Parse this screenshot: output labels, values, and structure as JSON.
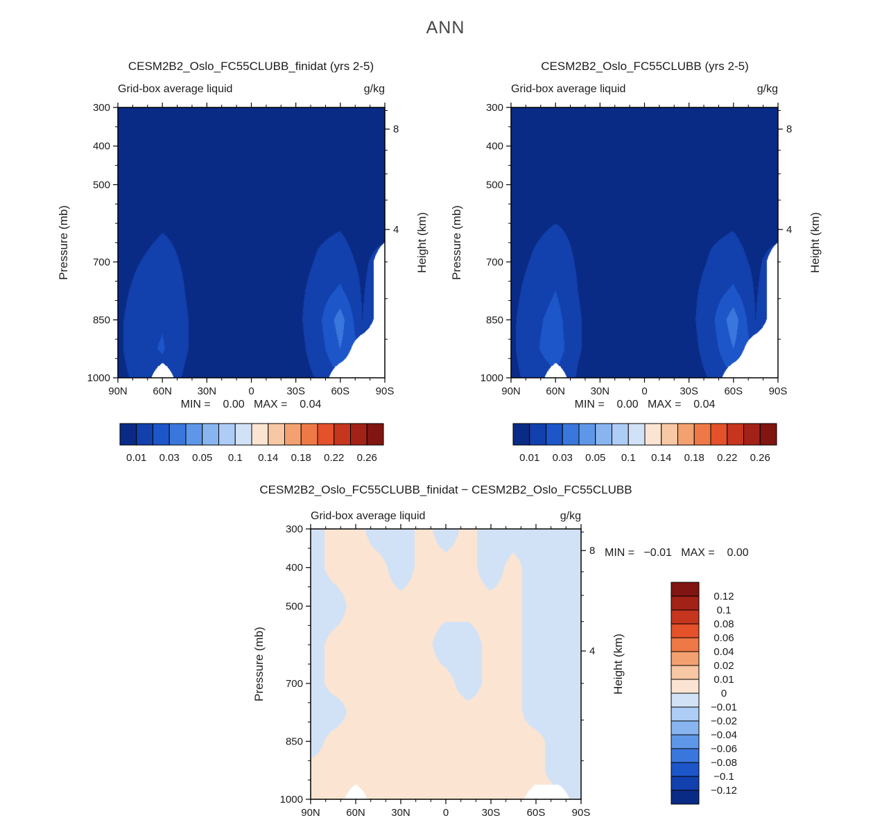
{
  "figure_title": "ANN",
  "palette_blue_red": [
    "#0a2b85",
    "#1240ad",
    "#1c56c8",
    "#3a77dd",
    "#5f97e8",
    "#88b5f0",
    "#aecdf6",
    "#d2e2f6",
    "#fbe5d2",
    "#f8c7a4",
    "#f4a171",
    "#ee7946",
    "#e4512a",
    "#c6351e",
    "#a32218",
    "#801511"
  ],
  "axes_shared": {
    "ylabel": "Pressure (mb)",
    "y2label": "Height (km)",
    "x_tick_labels": [
      "90N",
      "60N",
      "30N",
      "0",
      "30S",
      "60S",
      "90S"
    ],
    "x_tick_lats": [
      90,
      60,
      30,
      0,
      -30,
      -60,
      -90
    ],
    "x_minor_step_deg": 10,
    "pressure_range": [
      300,
      1000
    ],
    "pressure_ticks": [
      300,
      400,
      500,
      700,
      850,
      1000
    ],
    "pressure_minor": [
      350,
      450,
      550,
      600,
      650,
      750,
      800,
      900,
      950
    ],
    "height_ticks": [
      {
        "label": "8",
        "pressure": 356
      },
      {
        "label": "4",
        "pressure": 616
      }
    ],
    "height_minor_pressures": [
      900,
      795,
      700,
      540,
      472,
      411,
      308
    ]
  },
  "chart_data": [
    {
      "type": "filled_contour",
      "title": "CESM2B2_Oslo_FC55CLUBB_finidat (yrs 2-5)",
      "subtitle_left": "Grid-box average liquid",
      "units": "g/kg",
      "minmax_text": "MIN =    0.00   MAX =    0.04",
      "levels": [
        0.01,
        0.02,
        0.03,
        0.04,
        0.05,
        0.07,
        0.1,
        0.12,
        0.14,
        0.16,
        0.18,
        0.2,
        0.22,
        0.24,
        0.26
      ],
      "colorbar": {
        "orientation": "horizontal",
        "labels": [
          "0.01",
          "0.03",
          "0.05",
          "0.1",
          "0.14",
          "0.18",
          "0.22",
          "0.26"
        ],
        "label_boundary_indices": [
          0,
          2,
          4,
          6,
          8,
          10,
          12,
          14
        ]
      },
      "grid": {
        "lats": [
          90,
          75,
          60,
          45,
          30,
          15,
          0,
          -15,
          -30,
          -45,
          -60,
          -75,
          -90
        ],
        "plevs": [
          300,
          400,
          500,
          600,
          700,
          775,
          850,
          925,
          1000
        ],
        "values": [
          [
            0.003,
            0.003,
            0.003,
            0.003,
            0.003,
            0.003,
            0.003,
            0.003,
            0.003,
            0.003,
            0.003,
            0.003,
            0.003
          ],
          [
            0.004,
            0.004,
            0.004,
            0.004,
            0.004,
            0.004,
            0.004,
            0.004,
            0.004,
            0.004,
            0.004,
            0.004,
            0.004
          ],
          [
            0.004,
            0.005,
            0.006,
            0.006,
            0.005,
            0.004,
            0.004,
            0.004,
            0.005,
            0.006,
            0.006,
            0.005,
            0.004
          ],
          [
            0.005,
            0.007,
            0.009,
            0.008,
            0.005,
            0.004,
            0.003,
            0.004,
            0.005,
            0.008,
            0.009,
            0.006,
            0.005
          ],
          [
            0.006,
            0.01,
            0.013,
            0.009,
            0.005,
            0.003,
            0.003,
            0.003,
            0.006,
            0.011,
            0.014,
            0.008,
            0.015
          ],
          [
            0.007,
            0.013,
            0.017,
            0.01,
            0.005,
            0.003,
            0.003,
            0.003,
            0.007,
            0.014,
            0.022,
            0.009,
            0.018
          ],
          [
            0.008,
            0.016,
            0.019,
            0.011,
            0.005,
            0.003,
            0.003,
            0.003,
            0.007,
            0.017,
            0.035,
            0.01,
            0.02
          ],
          [
            0.008,
            0.017,
            0.021,
            0.011,
            0.005,
            0.003,
            0.003,
            0.003,
            0.006,
            0.015,
            0.03,
            0.018,
            0.02
          ],
          [
            0.007,
            0.013,
            0.016,
            0.009,
            0.005,
            0.003,
            0.003,
            0.003,
            0.005,
            0.011,
            0.02,
            0.016,
            0.02
          ]
        ]
      },
      "masked_cells": [
        [
          4,
          12
        ],
        [
          5,
          12
        ],
        [
          6,
          12
        ],
        [
          7,
          11
        ],
        [
          7,
          12
        ],
        [
          8,
          2
        ],
        [
          8,
          10
        ],
        [
          8,
          11
        ],
        [
          8,
          12
        ]
      ]
    },
    {
      "type": "filled_contour",
      "title": "CESM2B2_Oslo_FC55CLUBB (yrs 2-5)",
      "subtitle_left": "Grid-box average liquid",
      "units": "g/kg",
      "minmax_text": "MIN =    0.00   MAX =    0.04",
      "levels": [
        0.01,
        0.02,
        0.03,
        0.04,
        0.05,
        0.07,
        0.1,
        0.12,
        0.14,
        0.16,
        0.18,
        0.2,
        0.22,
        0.24,
        0.26
      ],
      "colorbar": {
        "orientation": "horizontal",
        "labels": [
          "0.01",
          "0.03",
          "0.05",
          "0.1",
          "0.14",
          "0.18",
          "0.22",
          "0.26"
        ],
        "label_boundary_indices": [
          0,
          2,
          4,
          6,
          8,
          10,
          12,
          14
        ]
      },
      "grid": {
        "lats": [
          90,
          75,
          60,
          45,
          30,
          15,
          0,
          -15,
          -30,
          -45,
          -60,
          -75,
          -90
        ],
        "plevs": [
          300,
          400,
          500,
          600,
          700,
          775,
          850,
          925,
          1000
        ],
        "values": [
          [
            0.003,
            0.003,
            0.003,
            0.003,
            0.003,
            0.003,
            0.003,
            0.003,
            0.003,
            0.003,
            0.003,
            0.003,
            0.003
          ],
          [
            0.004,
            0.004,
            0.004,
            0.004,
            0.004,
            0.004,
            0.004,
            0.004,
            0.004,
            0.004,
            0.004,
            0.004,
            0.004
          ],
          [
            0.004,
            0.005,
            0.006,
            0.006,
            0.005,
            0.004,
            0.004,
            0.004,
            0.005,
            0.006,
            0.006,
            0.005,
            0.004
          ],
          [
            0.005,
            0.008,
            0.01,
            0.008,
            0.005,
            0.004,
            0.003,
            0.004,
            0.005,
            0.008,
            0.009,
            0.006,
            0.005
          ],
          [
            0.006,
            0.011,
            0.015,
            0.009,
            0.005,
            0.003,
            0.003,
            0.003,
            0.006,
            0.011,
            0.014,
            0.008,
            0.015
          ],
          [
            0.007,
            0.014,
            0.02,
            0.01,
            0.005,
            0.003,
            0.003,
            0.003,
            0.007,
            0.014,
            0.022,
            0.009,
            0.018
          ],
          [
            0.008,
            0.017,
            0.024,
            0.011,
            0.005,
            0.003,
            0.003,
            0.003,
            0.007,
            0.017,
            0.036,
            0.01,
            0.02
          ],
          [
            0.008,
            0.018,
            0.026,
            0.011,
            0.005,
            0.003,
            0.003,
            0.003,
            0.006,
            0.015,
            0.03,
            0.018,
            0.02
          ],
          [
            0.007,
            0.014,
            0.018,
            0.009,
            0.005,
            0.003,
            0.003,
            0.003,
            0.005,
            0.011,
            0.02,
            0.016,
            0.02
          ]
        ]
      },
      "masked_cells": [
        [
          4,
          12
        ],
        [
          5,
          12
        ],
        [
          6,
          12
        ],
        [
          7,
          11
        ],
        [
          7,
          12
        ],
        [
          8,
          2
        ],
        [
          8,
          10
        ],
        [
          8,
          11
        ],
        [
          8,
          12
        ]
      ]
    },
    {
      "type": "filled_contour_difference",
      "title": "CESM2B2_Oslo_FC55CLUBB_finidat − CESM2B2_Oslo_FC55CLUBB",
      "subtitle_left": "Grid-box average liquid",
      "units": "g/kg",
      "minmax_text": "MIN =   −0.01   MAX =    0.00",
      "levels": [
        -0.12,
        -0.1,
        -0.08,
        -0.06,
        -0.04,
        -0.02,
        -0.01,
        0,
        0.01,
        0.02,
        0.04,
        0.06,
        0.08,
        0.1,
        0.12
      ],
      "colorbar": {
        "orientation": "vertical",
        "labels": [
          "0.12",
          "0.1",
          "0.08",
          "0.06",
          "0.04",
          "0.02",
          "0.01",
          "0",
          "−0.01",
          "−0.02",
          "−0.04",
          "−0.06",
          "−0.08",
          "−0.1",
          "−0.12"
        ]
      },
      "grid": {
        "lats": [
          90,
          75,
          60,
          45,
          30,
          15,
          0,
          -15,
          -30,
          -45,
          -60,
          -75,
          -90
        ],
        "plevs": [
          300,
          400,
          500,
          600,
          700,
          775,
          850,
          925,
          1000
        ],
        "values": [
          [
            -0.003,
            0.002,
            0.002,
            -0.003,
            -0.003,
            0.002,
            -0.003,
            0.002,
            -0.003,
            -0.003,
            -0.003,
            -0.003,
            -0.003
          ],
          [
            -0.003,
            0.002,
            0.002,
            0.002,
            -0.003,
            0.002,
            0.002,
            0.002,
            -0.003,
            0.002,
            -0.003,
            -0.003,
            -0.003
          ],
          [
            -0.003,
            -0.003,
            0.002,
            0.002,
            0.002,
            0.002,
            0.002,
            0.002,
            0.002,
            0.002,
            -0.003,
            -0.003,
            -0.003
          ],
          [
            -0.003,
            0.002,
            0.002,
            0.002,
            0.002,
            0.002,
            -0.003,
            -0.003,
            0.002,
            0.002,
            -0.003,
            -0.003,
            -0.003
          ],
          [
            -0.003,
            0.002,
            0.002,
            0.002,
            0.002,
            0.002,
            0.002,
            -0.003,
            0.002,
            0.002,
            -0.003,
            -0.003,
            -0.003
          ],
          [
            -0.003,
            -0.003,
            0.002,
            0.002,
            0.002,
            0.002,
            0.002,
            0.002,
            0.002,
            0.002,
            -0.003,
            -0.003,
            -0.003
          ],
          [
            -0.003,
            0.002,
            0.002,
            0.002,
            0.002,
            0.002,
            0.002,
            0.002,
            0.002,
            0.002,
            0.002,
            -0.003,
            -0.003
          ],
          [
            0.002,
            0.002,
            0.002,
            0.002,
            0.002,
            0.002,
            0.002,
            0.002,
            0.002,
            0.002,
            0.002,
            -0.003,
            -0.003
          ],
          [
            0.002,
            0.002,
            0.002,
            0.002,
            0.002,
            0.002,
            0.002,
            0.002,
            0.002,
            0.002,
            0.002,
            0.002,
            -0.003
          ]
        ]
      },
      "masked_cells": [
        [
          8,
          2
        ],
        [
          8,
          10
        ],
        [
          8,
          11
        ]
      ]
    }
  ]
}
